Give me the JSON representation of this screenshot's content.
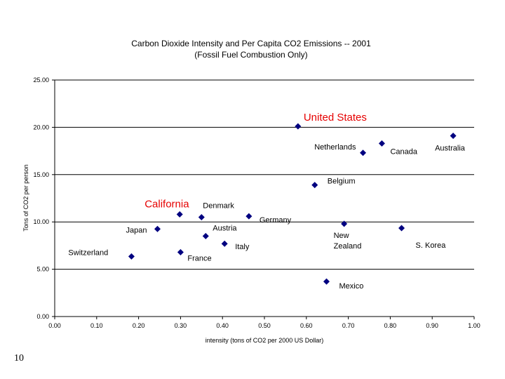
{
  "slide_number": "10",
  "chart_data": {
    "type": "scatter",
    "title": "Carbon Dioxide Intensity and Per Capita CO2 Emissions -- 2001",
    "subtitle": "(Fossil Fuel Combustion Only)",
    "xlabel": "intensity (tons of CO2 per 2000 US Dollar)",
    "ylabel": "Tons of CO2 per person",
    "xlim": [
      0,
      1.0
    ],
    "ylim": [
      0,
      25
    ],
    "x_ticks": [
      "0.00",
      "0.10",
      "0.20",
      "0.30",
      "0.40",
      "0.50",
      "0.60",
      "0.70",
      "0.80",
      "0.90",
      "1.00"
    ],
    "y_ticks": [
      "0.00",
      "5.00",
      "10.00",
      "15.00",
      "20.00",
      "25.00"
    ],
    "grid": "horizontal at 5.00 intervals",
    "legend": "none",
    "marker_color": "#000080",
    "highlight_color": "#e60000",
    "points": [
      {
        "label": "United States",
        "x": 0.58,
        "y": 20.1,
        "highlight": true
      },
      {
        "label": "Netherlands",
        "x": 0.735,
        "y": 17.3
      },
      {
        "label": "Canada",
        "x": 0.78,
        "y": 18.3
      },
      {
        "label": "Australia",
        "x": 0.95,
        "y": 19.1
      },
      {
        "label": "Belgium",
        "x": 0.62,
        "y": 13.9
      },
      {
        "label": "California",
        "x": 0.298,
        "y": 10.8,
        "highlight": true
      },
      {
        "label": "Denmark",
        "x": 0.35,
        "y": 10.5
      },
      {
        "label": "Germany",
        "x": 0.463,
        "y": 10.6
      },
      {
        "label": "Austria",
        "x": 0.36,
        "y": 8.5
      },
      {
        "label": "Japan",
        "x": 0.245,
        "y": 9.25
      },
      {
        "label": "Italy",
        "x": 0.405,
        "y": 7.7
      },
      {
        "label": "France",
        "x": 0.3,
        "y": 6.8
      },
      {
        "label": "Switzerland",
        "x": 0.183,
        "y": 6.35
      },
      {
        "label": "New Zealand",
        "x": 0.69,
        "y": 9.8
      },
      {
        "label": "S. Korea",
        "x": 0.827,
        "y": 9.35
      },
      {
        "label": "Mexico",
        "x": 0.648,
        "y": 3.7
      }
    ]
  }
}
